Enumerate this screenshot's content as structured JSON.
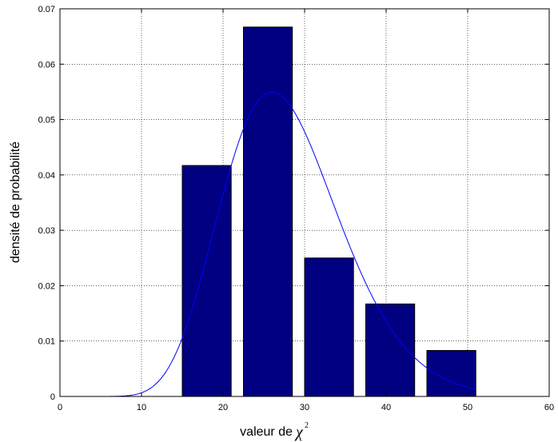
{
  "chart_data": {
    "type": "bar",
    "xlabel": "valeur de",
    "xlabel_symbol": "χ",
    "xlabel_superscript": "2",
    "ylabel": "densité de probabilité",
    "xlim": [
      0,
      60
    ],
    "ylim": [
      0,
      0.07
    ],
    "xticks": [
      "0",
      "10",
      "20",
      "30",
      "40",
      "50",
      "60"
    ],
    "yticks": [
      "0",
      "0.01",
      "0.02",
      "0.03",
      "0.04",
      "0.05",
      "0.06",
      "0.07"
    ],
    "grid": true,
    "bar_color": "#000080",
    "curve_color": "#0000ff",
    "bars": [
      {
        "x_start": 15.0,
        "x_end": 21.0,
        "value": 0.0417
      },
      {
        "x_start": 22.5,
        "x_end": 28.5,
        "value": 0.0667
      },
      {
        "x_start": 30.0,
        "x_end": 36.0,
        "value": 0.025
      },
      {
        "x_start": 37.5,
        "x_end": 43.5,
        "value": 0.0167
      },
      {
        "x_start": 45.0,
        "x_end": 51.0,
        "value": 0.0083
      }
    ],
    "curve": {
      "type": "chi-square density",
      "degrees_of_freedom": 28,
      "x_range": [
        0,
        51
      ]
    }
  }
}
